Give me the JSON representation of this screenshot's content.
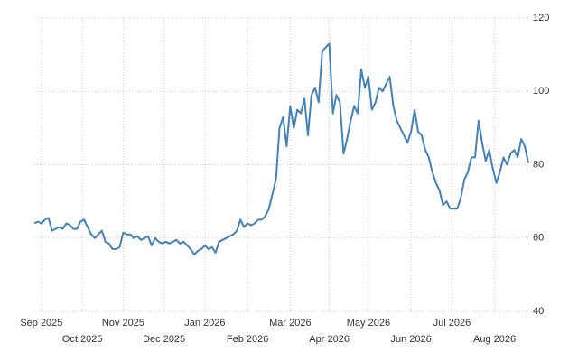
{
  "chart_data": {
    "type": "line",
    "series": [
      {
        "color": "#4382bb",
        "values": [
          64,
          64.5,
          64,
          65,
          65.5,
          62,
          62.5,
          63,
          62.5,
          64,
          63.5,
          62.5,
          62.5,
          64.5,
          65,
          63,
          61,
          60,
          61,
          62,
          59,
          58.5,
          57,
          57,
          57.5,
          61.5,
          61,
          61,
          60,
          60.5,
          59.5,
          60,
          60.5,
          58,
          60,
          59,
          58.5,
          59,
          58.5,
          59,
          59.5,
          58.5,
          59,
          58,
          57,
          55.5,
          56.5,
          57,
          58,
          57,
          57.5,
          56,
          59,
          59.5,
          60,
          60.5,
          61,
          62,
          65,
          63,
          64,
          63.5,
          64,
          65,
          65,
          66,
          68,
          72,
          76,
          90,
          93,
          85,
          96,
          90,
          95,
          94,
          98,
          88,
          99,
          101,
          97,
          111,
          112,
          113,
          94,
          99,
          97,
          83,
          87,
          92,
          96,
          94,
          106,
          101,
          104,
          95,
          97,
          101,
          100,
          102,
          104,
          96,
          92,
          90,
          88,
          86,
          89,
          95,
          89,
          88,
          84,
          82,
          78,
          75,
          73,
          69,
          70,
          68,
          68,
          68,
          71,
          76,
          78,
          82,
          82,
          92,
          86,
          81,
          84,
          79,
          75,
          78,
          82,
          80,
          83,
          84,
          82,
          87,
          85,
          80.5
        ]
      }
    ],
    "xlim": [
      0,
      139
    ],
    "xticks": [
      {
        "value": 2,
        "label": "Sep 2025"
      },
      {
        "value": 13.5,
        "label": "Oct 2025"
      },
      {
        "value": 25,
        "label": "Nov 2025"
      },
      {
        "value": 36.5,
        "label": "Dec 2025"
      },
      {
        "value": 48,
        "label": "Jan 2026"
      },
      {
        "value": 60,
        "label": "Feb 2026"
      },
      {
        "value": 72,
        "label": "Mar 2026"
      },
      {
        "value": 83,
        "label": "Apr 2026"
      },
      {
        "value": 94,
        "label": "May 2026"
      },
      {
        "value": 106,
        "label": "Jun 2026"
      },
      {
        "value": 117.5,
        "label": "Jul 2026"
      },
      {
        "value": 129.5,
        "label": "Aug 2026"
      }
    ],
    "ylim": [
      40,
      120
    ],
    "yticks": [
      40,
      60,
      80,
      100,
      120
    ],
    "grid": true
  }
}
